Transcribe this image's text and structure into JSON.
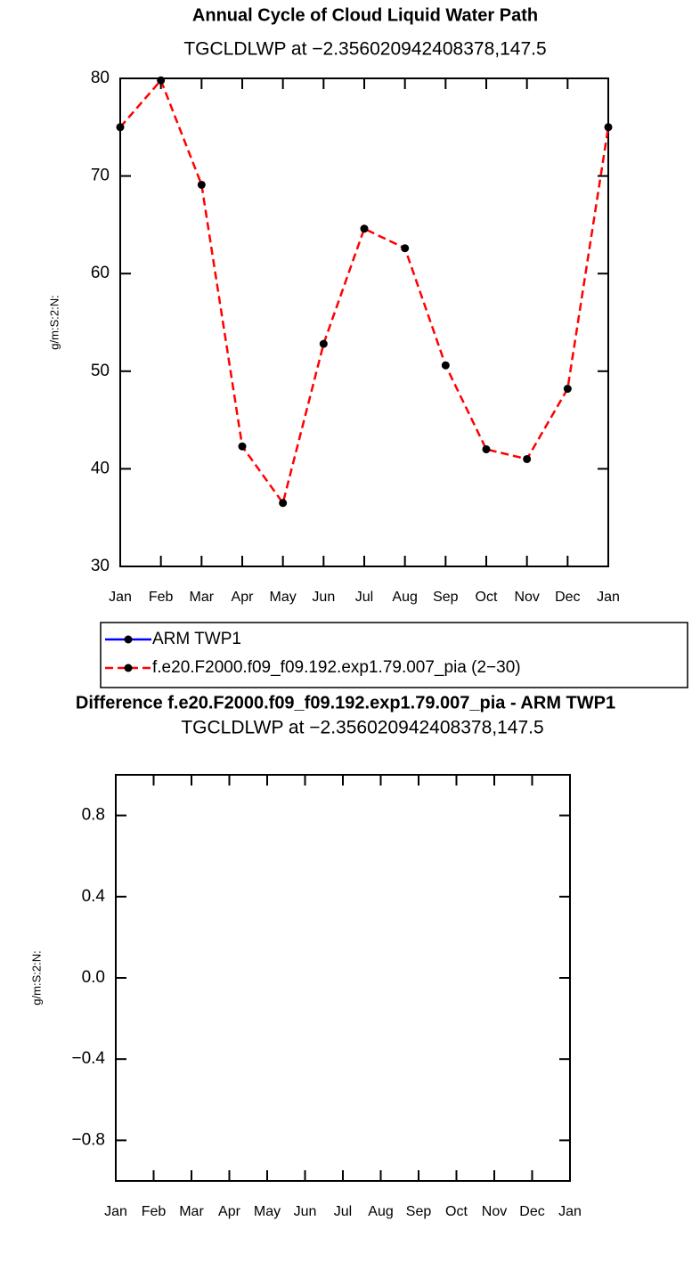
{
  "chart_data": [
    {
      "type": "line",
      "title": "Annual Cycle of Cloud Liquid Water Path",
      "subtitle": "TGCLDLWP at −2.356020942408378,147.5",
      "ylabel": "g/m:S:2:N:",
      "categories": [
        "Jan",
        "Feb",
        "Mar",
        "Apr",
        "May",
        "Jun",
        "Jul",
        "Aug",
        "Sep",
        "Oct",
        "Nov",
        "Dec",
        "Jan"
      ],
      "series": [
        {
          "name": "ARM TWP1",
          "color": "#0000ff",
          "dash": "solid",
          "values": [
            null,
            null,
            null,
            null,
            null,
            null,
            null,
            null,
            null,
            null,
            null,
            null,
            null
          ]
        },
        {
          "name": "f.e20.F2000.f09_f09.192.exp1.79.007_pia (2−30)",
          "color": "#ff0000",
          "dash": "dashed",
          "values": [
            75.0,
            79.8,
            69.1,
            42.3,
            36.5,
            52.8,
            64.6,
            62.6,
            50.6,
            42.0,
            41.0,
            48.2,
            75.0
          ]
        }
      ],
      "ylim": [
        30,
        80
      ],
      "yticks": [
        30,
        40,
        50,
        60,
        70,
        80
      ]
    },
    {
      "type": "line",
      "title": "Difference f.e20.F2000.f09_f09.192.exp1.79.007_pia - ARM TWP1",
      "subtitle": "TGCLDLWP at −2.356020942408378,147.5",
      "ylabel": "g/m:S:2:N:",
      "categories": [
        "Jan",
        "Feb",
        "Mar",
        "Apr",
        "May",
        "Jun",
        "Jul",
        "Aug",
        "Sep",
        "Oct",
        "Nov",
        "Dec",
        "Jan"
      ],
      "ylim": [
        -1,
        1
      ],
      "yticks": [
        {
          "value": -0.8,
          "label": "−0.8"
        },
        {
          "value": -0.4,
          "label": "−0.4"
        },
        {
          "value": 0,
          "label": "0.0"
        },
        0.4,
        0.8
      ]
    }
  ]
}
